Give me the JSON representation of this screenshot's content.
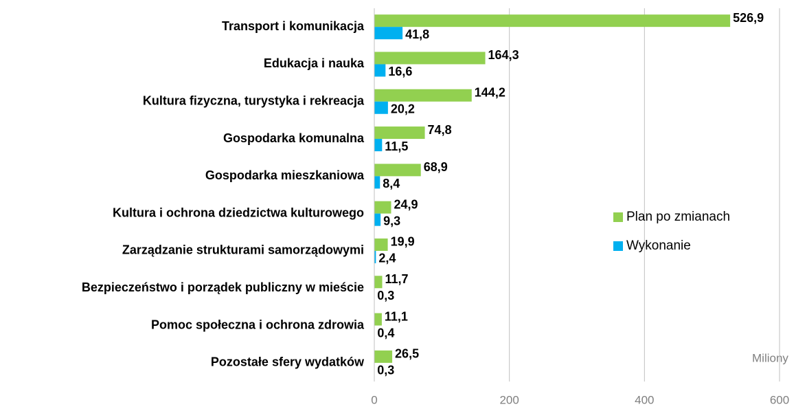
{
  "chart_data": {
    "type": "bar",
    "orientation": "horizontal",
    "categories": [
      "Transport i komunikacja",
      "Edukacja i nauka",
      "Kultura fizyczna, turystyka i rekreacja",
      "Gospodarka komunalna",
      "Gospodarka mieszkaniowa",
      "Kultura i ochrona dziedzictwa kulturowego",
      "Zarządzanie strukturami samorządowymi",
      "Bezpieczeństwo i porządek publiczny w mieście",
      "Pomoc społeczna i ochrona zdrowia",
      "Pozostałe sfery wydatków"
    ],
    "series": [
      {
        "name": "Plan po zmianach",
        "color": "#92d050",
        "values": [
          526.9,
          164.3,
          144.2,
          74.8,
          68.9,
          24.9,
          19.9,
          11.7,
          11.1,
          26.5
        ],
        "value_labels": [
          "526,9",
          "164,3",
          "144,2",
          "74,8",
          "68,9",
          "24,9",
          "19,9",
          "11,7",
          "11,1",
          "26,5"
        ]
      },
      {
        "name": "Wykonanie",
        "color": "#00b0f0",
        "values": [
          41.8,
          16.6,
          20.2,
          11.5,
          8.4,
          9.3,
          2.4,
          0.3,
          0.4,
          0.3
        ],
        "value_labels": [
          "41,8",
          "16,6",
          "20,2",
          "11,5",
          "8,4",
          "9,3",
          "2,4",
          "0,3",
          "0,4",
          "0,3"
        ]
      }
    ],
    "xlim": [
      0,
      600
    ],
    "xticks": [
      0,
      200,
      400,
      600
    ],
    "grid": true,
    "axis_unit_label": "Miliony",
    "legend": "right"
  }
}
